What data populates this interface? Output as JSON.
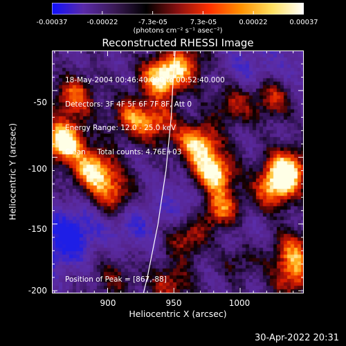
{
  "colorbar": {
    "ticks": [
      "-0.00037",
      "-0.00022",
      "-7.3e-05",
      "7.3e-05",
      "0.00022",
      "0.00037"
    ],
    "units": "(photons cm⁻² s⁻¹ asec⁻²)",
    "stops": [
      "#1010ff",
      "#5a2aa8",
      "#3a1a55",
      "#000000",
      "#8a1010",
      "#ff3000",
      "#ff9000",
      "#ffe060",
      "#ffffff"
    ]
  },
  "title": "Reconstructed RHESSI Image",
  "info": {
    "line1": "18-May-2004 00:46:40.000 to 00:52:40.000",
    "line2": "Detectors: 3F 4F 5F 6F 7F 8F, Att 0",
    "line3": "Energy Range: 12.0 - 25.0 keV",
    "line4": "Clean     Total counts: 4.76E+03"
  },
  "peak": "Position of Peak = [867,-88]",
  "timestamp": "30-Apr-2022 20:31",
  "chart_data": {
    "type": "heatmap",
    "title": "Reconstructed RHESSI Image",
    "xlabel": "Heliocentric X (arcsec)",
    "ylabel": "Heliocentric Y (arcsec)",
    "xlim": [
      858,
      1048
    ],
    "ylim": [
      -202,
      -20
    ],
    "x_ticks": [
      "900",
      "950",
      "1000"
    ],
    "x_tick_values": [
      900,
      950,
      1000
    ],
    "y_ticks": [
      "-50",
      "-100",
      "-150",
      "-200"
    ],
    "y_tick_values": [
      -50,
      -100,
      -150,
      -200
    ],
    "colorbar_range": [
      -0.00037,
      0.00037
    ],
    "peak_position": [
      867,
      -88
    ],
    "limb_curve": [
      [
        927,
        -202
      ],
      [
        930,
        -190
      ],
      [
        934,
        -170
      ],
      [
        938,
        -150
      ],
      [
        941,
        -130
      ],
      [
        944,
        -110
      ],
      [
        946,
        -90
      ],
      [
        948,
        -70
      ],
      [
        949,
        -50
      ],
      [
        950,
        -35
      ],
      [
        951,
        -20
      ]
    ],
    "sources": [
      {
        "x": 867,
        "y": -88,
        "intensity": 1.0
      },
      {
        "x": 875,
        "y": -55,
        "intensity": 0.6
      },
      {
        "x": 890,
        "y": -110,
        "intensity": 0.85
      },
      {
        "x": 905,
        "y": -128,
        "intensity": 0.55
      },
      {
        "x": 941,
        "y": -40,
        "intensity": 0.9
      },
      {
        "x": 918,
        "y": -70,
        "intensity": 0.55
      },
      {
        "x": 938,
        "y": -75,
        "intensity": 0.5
      },
      {
        "x": 960,
        "y": -30,
        "intensity": 0.5
      },
      {
        "x": 968,
        "y": -90,
        "intensity": 0.8
      },
      {
        "x": 980,
        "y": -112,
        "intensity": 0.9
      },
      {
        "x": 985,
        "y": -140,
        "intensity": 0.7
      },
      {
        "x": 995,
        "y": -60,
        "intensity": 0.45
      },
      {
        "x": 1035,
        "y": -110,
        "intensity": 0.95
      },
      {
        "x": 1025,
        "y": -125,
        "intensity": 0.6
      },
      {
        "x": 1025,
        "y": -55,
        "intensity": 0.5
      },
      {
        "x": 1040,
        "y": -170,
        "intensity": 0.55
      },
      {
        "x": 1040,
        "y": -190,
        "intensity": 0.55
      },
      {
        "x": 1000,
        "y": -175,
        "intensity": 0.35
      },
      {
        "x": 960,
        "y": -160,
        "intensity": 0.5
      },
      {
        "x": 947,
        "y": -195,
        "intensity": 0.45
      },
      {
        "x": 905,
        "y": -190,
        "intensity": 0.3
      }
    ],
    "negatives": [
      {
        "x": 875,
        "y": -155,
        "intensity": 1.0
      },
      {
        "x": 960,
        "y": -135,
        "intensity": 0.7
      },
      {
        "x": 1005,
        "y": -35,
        "intensity": 0.6
      },
      {
        "x": 1040,
        "y": -35,
        "intensity": 0.5
      },
      {
        "x": 920,
        "y": -150,
        "intensity": 0.7
      },
      {
        "x": 860,
        "y": -170,
        "intensity": 0.7
      },
      {
        "x": 1000,
        "y": -160,
        "intensity": 0.5
      }
    ]
  }
}
